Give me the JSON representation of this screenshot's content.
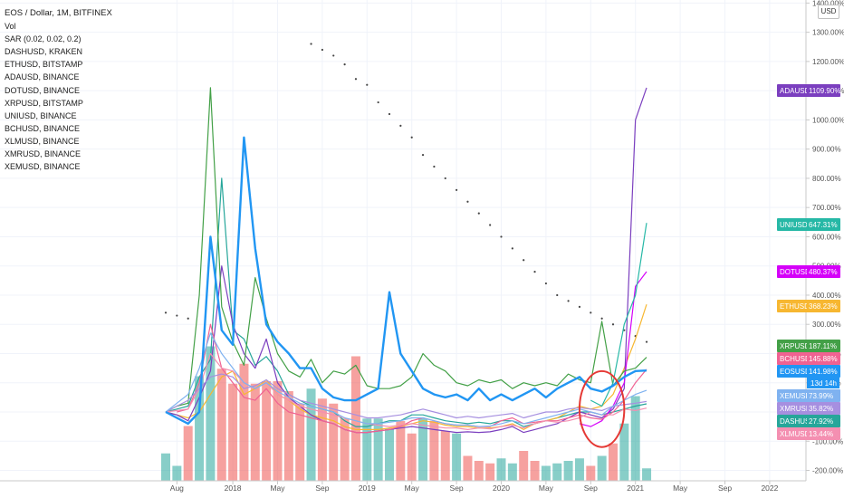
{
  "legend": {
    "title": "EOS / Dollar, 1M, BITFINEX",
    "items": [
      "Vol",
      "SAR (0.02, 0.02, 0.2)",
      "DASHUSD, KRAKEN",
      "ETHUSD, BITSTAMP",
      "ADAUSD, BINANCE",
      "DOTUSD, BINANCE",
      "XRPUSD, BITSTAMP",
      "UNIUSD, BINANCE",
      "BCHUSD, BINANCE",
      "XLMUSD, BINANCE",
      "XMRUSD, BINANCE",
      "XEMUSD, BINANCE"
    ]
  },
  "currency_button": "USD",
  "chart_data": {
    "type": "line",
    "title": "EOS / Dollar, 1M, BITFINEX",
    "y_scale": "percent",
    "ylim": [
      -230,
      1500
    ],
    "y_ticks": [
      -200,
      -100,
      0,
      100,
      200,
      300,
      400,
      500,
      600,
      700,
      800,
      900,
      1000,
      1100,
      1200,
      1300,
      1400
    ],
    "y_tick_labels": [
      "-200.00%",
      "-100.00%",
      "0.00%",
      "100.00%",
      "200.00%",
      "300.00%",
      "400.00%",
      "500.00%",
      "600.00%",
      "700.00%",
      "800.00%",
      "900.00%",
      "1000.00%",
      "1100.00%",
      "1200.00%",
      "1300.00%",
      "1400.00%"
    ],
    "x": [
      "2017-07",
      "2017-08",
      "2017-09",
      "2017-10",
      "2017-11",
      "2017-12",
      "2018-01",
      "2018-02",
      "2018-03",
      "2018-04",
      "2018-05",
      "2018-06",
      "2018-07",
      "2018-08",
      "2018-09",
      "2018-10",
      "2018-11",
      "2018-12",
      "2019-01",
      "2019-02",
      "2019-03",
      "2019-04",
      "2019-05",
      "2019-06",
      "2019-07",
      "2019-08",
      "2019-09",
      "2019-10",
      "2019-11",
      "2019-12",
      "2020-01",
      "2020-02",
      "2020-03",
      "2020-04",
      "2020-05",
      "2020-06",
      "2020-07",
      "2020-08",
      "2020-09",
      "2020-10",
      "2020-11",
      "2020-12",
      "2021-01",
      "2021-02"
    ],
    "x_tick_labels": [
      {
        "date": "2017-08",
        "label": "Aug"
      },
      {
        "date": "2018-01",
        "label": "2018"
      },
      {
        "date": "2018-05",
        "label": "May"
      },
      {
        "date": "2018-09",
        "label": "Sep"
      },
      {
        "date": "2019-01",
        "label": "2019"
      },
      {
        "date": "2019-05",
        "label": "May"
      },
      {
        "date": "2019-09",
        "label": "Sep"
      },
      {
        "date": "2020-01",
        "label": "2020"
      },
      {
        "date": "2020-05",
        "label": "May"
      },
      {
        "date": "2020-09",
        "label": "Sep"
      },
      {
        "date": "2021-01",
        "label": "2021"
      },
      {
        "date": "2021-05",
        "label": "May"
      },
      {
        "date": "2021-09",
        "label": "Sep"
      },
      {
        "date": "2022-01",
        "label": "2022"
      }
    ],
    "series": [
      {
        "name": "DASHUSD",
        "color": "#26a69a",
        "tag_label": "DASHUSD",
        "tag_value": "27.92%",
        "values": [
          0,
          10,
          20,
          120,
          180,
          800,
          280,
          250,
          160,
          190,
          140,
          60,
          40,
          20,
          10,
          0,
          -30,
          -50,
          -50,
          -40,
          -30,
          -30,
          -10,
          -10,
          -20,
          -30,
          -35,
          -40,
          -35,
          -40,
          -30,
          -30,
          -50,
          -40,
          -30,
          -20,
          -10,
          0,
          0,
          -10,
          0,
          10,
          20,
          27.92
        ]
      },
      {
        "name": "ETHUSD",
        "color": "#f7b731",
        "tag_label": "ETHUSD",
        "tag_value": "368.23%",
        "values": [
          0,
          -10,
          -20,
          0,
          60,
          120,
          140,
          60,
          80,
          110,
          60,
          40,
          10,
          -10,
          -20,
          -30,
          -50,
          -60,
          -60,
          -60,
          -55,
          -50,
          -40,
          -30,
          -35,
          -45,
          -50,
          -50,
          -55,
          -55,
          -50,
          -40,
          -60,
          -40,
          -30,
          -20,
          0,
          20,
          10,
          20,
          60,
          150,
          250,
          368.23
        ]
      },
      {
        "name": "ADAUSD",
        "color": "#7b3fbf",
        "tag_label": "ADAUSD",
        "tag_value": "1109.90%",
        "values": [
          0,
          -10,
          -30,
          50,
          140,
          500,
          300,
          200,
          150,
          250,
          100,
          50,
          20,
          -10,
          -30,
          -40,
          -60,
          -70,
          -70,
          -65,
          -60,
          -55,
          -50,
          -55,
          -60,
          -65,
          -70,
          -68,
          -70,
          -68,
          -60,
          -50,
          -70,
          -60,
          -50,
          -40,
          -20,
          0,
          -10,
          -20,
          10,
          80,
          1000,
          1109.9
        ]
      },
      {
        "name": "DOTUSD",
        "color": "#d500f9",
        "tag_label": "DOTUSD",
        "tag_value": "480.37%",
        "values": [
          null,
          null,
          null,
          null,
          null,
          null,
          null,
          null,
          null,
          null,
          null,
          null,
          null,
          null,
          null,
          null,
          null,
          null,
          null,
          null,
          null,
          null,
          null,
          null,
          null,
          null,
          null,
          null,
          null,
          null,
          null,
          null,
          null,
          null,
          null,
          null,
          null,
          -40,
          -50,
          -30,
          20,
          100,
          430,
          480.37
        ]
      },
      {
        "name": "XRPUSD",
        "color": "#43a047",
        "tag_label": "XRPUSD",
        "tag_value": "187.11%",
        "values": [
          0,
          20,
          30,
          400,
          1110,
          360,
          240,
          160,
          460,
          320,
          200,
          140,
          120,
          180,
          100,
          140,
          130,
          160,
          90,
          80,
          80,
          90,
          120,
          200,
          160,
          140,
          100,
          90,
          110,
          100,
          110,
          80,
          100,
          90,
          100,
          90,
          130,
          110,
          100,
          310,
          90,
          140,
          150,
          187.11
        ]
      },
      {
        "name": "UNIUSD",
        "color": "#26b8a6",
        "tag_label": "UNIUSD",
        "tag_value": "647.31%",
        "values": [
          null,
          null,
          null,
          null,
          null,
          null,
          null,
          null,
          null,
          null,
          null,
          null,
          null,
          null,
          null,
          null,
          null,
          null,
          null,
          null,
          null,
          null,
          null,
          null,
          null,
          null,
          null,
          null,
          null,
          null,
          null,
          null,
          null,
          null,
          null,
          null,
          null,
          null,
          40,
          20,
          100,
          300,
          400,
          647.31
        ]
      },
      {
        "name": "BCHUSD",
        "color": "#f06292",
        "tag_label": "BCHUSD",
        "tag_value": "145.88%",
        "values": [
          null,
          0,
          10,
          100,
          300,
          150,
          100,
          50,
          40,
          80,
          30,
          0,
          -10,
          -20,
          -30,
          -40,
          -60,
          -70,
          -70,
          -65,
          -60,
          -50,
          -30,
          -20,
          -30,
          -40,
          -45,
          -45,
          -50,
          -50,
          -30,
          -20,
          -40,
          -35,
          -30,
          -30,
          -20,
          -10,
          -20,
          -25,
          0,
          40,
          100,
          145.88
        ]
      },
      {
        "name": "XLMUSD",
        "color": "#f48fb1",
        "tag_label": "XLMUSD",
        "tag_value": "13.44%",
        "values": [
          0,
          5,
          10,
          80,
          200,
          150,
          140,
          100,
          80,
          100,
          60,
          40,
          20,
          10,
          0,
          -10,
          -20,
          -30,
          -40,
          -45,
          -50,
          -45,
          -40,
          -45,
          -50,
          -55,
          -55,
          -60,
          -55,
          -58,
          -50,
          -45,
          -55,
          -40,
          -30,
          -35,
          -30,
          -20,
          0,
          -10,
          -10,
          10,
          5,
          13.44
        ]
      },
      {
        "name": "XMRUSD",
        "color": "#a68fe0",
        "tag_label": "XMRUSD",
        "tag_value": "35.82%",
        "values": [
          0,
          20,
          40,
          80,
          120,
          130,
          120,
          80,
          90,
          110,
          80,
          60,
          40,
          30,
          20,
          10,
          0,
          -10,
          -20,
          -20,
          -15,
          -10,
          0,
          10,
          0,
          -10,
          -20,
          -15,
          -20,
          -15,
          -10,
          -5,
          -20,
          -10,
          0,
          0,
          10,
          15,
          10,
          5,
          20,
          25,
          30,
          35.82
        ]
      },
      {
        "name": "XEMUSD",
        "color": "#7fb2f0",
        "tag_label": "XEMUSD",
        "tag_value": "73.99%",
        "values": [
          0,
          30,
          60,
          150,
          270,
          200,
          150,
          100,
          80,
          100,
          70,
          50,
          30,
          20,
          10,
          0,
          -20,
          -30,
          -40,
          -40,
          -35,
          -30,
          -20,
          -20,
          -30,
          -40,
          -45,
          -45,
          -50,
          -48,
          -40,
          -30,
          -40,
          -30,
          -20,
          -10,
          0,
          10,
          0,
          -10,
          20,
          40,
          60,
          73.99
        ]
      },
      {
        "name": "EOSUSD",
        "color": "#2196f3",
        "tag_label": "EOSUSD",
        "tag_value": "141.98%",
        "tag_sub": "13d 14h",
        "values": [
          0,
          -20,
          -40,
          0,
          600,
          280,
          230,
          940,
          560,
          300,
          240,
          200,
          150,
          150,
          80,
          50,
          40,
          40,
          60,
          80,
          410,
          200,
          140,
          80,
          60,
          50,
          60,
          40,
          80,
          40,
          60,
          40,
          60,
          80,
          50,
          80,
          100,
          120,
          80,
          70,
          90,
          120,
          140,
          141.98
        ]
      },
      {
        "name": "Vol",
        "type": "bar",
        "values": [
          55,
          30,
          110,
          210,
          270,
          225,
          195,
          235,
          195,
          200,
          200,
          180,
          155,
          185,
          165,
          155,
          125,
          250,
          125,
          125,
          105,
          120,
          95,
          125,
          120,
          100,
          95,
          50,
          40,
          35,
          45,
          35,
          60,
          40,
          30,
          35,
          40,
          45,
          30,
          50,
          75,
          115,
          170,
          25
        ],
        "up": [
          true,
          true,
          false,
          true,
          true,
          false,
          false,
          false,
          false,
          false,
          false,
          false,
          false,
          true,
          false,
          false,
          false,
          false,
          true,
          true,
          true,
          false,
          false,
          true,
          false,
          false,
          true,
          false,
          false,
          false,
          true,
          true,
          false,
          false,
          true,
          true,
          true,
          true,
          false,
          true,
          false,
          true,
          true,
          true
        ]
      },
      {
        "name": "SAR",
        "type": "dots",
        "values": [
          340,
          330,
          320,
          null,
          null,
          null,
          null,
          null,
          null,
          null,
          null,
          null,
          null,
          1260,
          1240,
          1220,
          1190,
          1140,
          1120,
          1060,
          1020,
          980,
          940,
          880,
          840,
          800,
          760,
          720,
          680,
          640,
          600,
          560,
          520,
          480,
          440,
          400,
          380,
          360,
          340,
          320,
          300,
          280,
          260,
          240
        ]
      }
    ],
    "annotation": {
      "type": "circle",
      "color": "#e53935",
      "x_range": [
        "2020-08",
        "2020-12"
      ],
      "y_range": [
        -120,
        140
      ]
    },
    "grid": true,
    "legend_position": "top-left"
  }
}
